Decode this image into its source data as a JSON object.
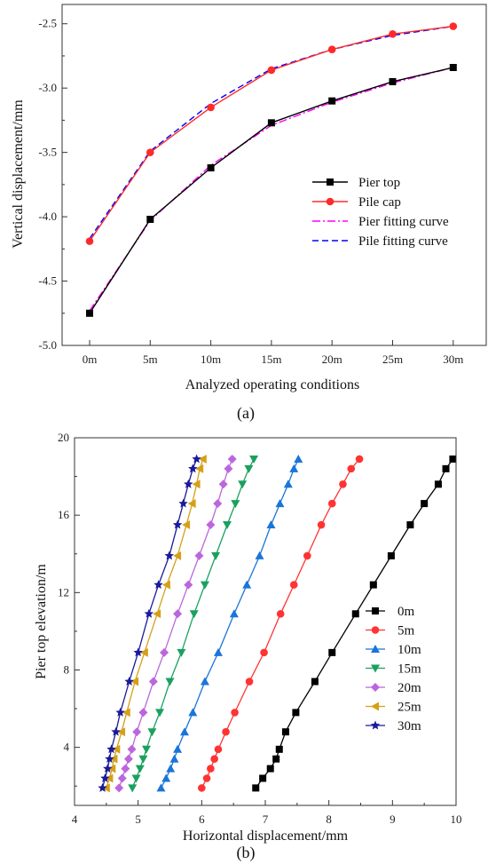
{
  "chart_data": [
    {
      "type": "line",
      "panel_label": "(a)",
      "xlabel": "Analyzed operating conditions",
      "ylabel": "Vertical displacement/mm",
      "categories": [
        "0m",
        "5m",
        "10m",
        "15m",
        "20m",
        "25m",
        "30m"
      ],
      "yticks": [
        "-5.0",
        "-4.5",
        "-4.0",
        "-3.5",
        "-3.0",
        "-2.5"
      ],
      "ylim": [
        -5.0,
        -2.35
      ],
      "legend_position": "right-middle",
      "series": [
        {
          "name": "Pier top",
          "color": "#000000",
          "style": "solid",
          "marker": "square",
          "values": [
            -4.75,
            -4.02,
            -3.62,
            -3.27,
            -3.1,
            -2.95,
            -2.84
          ]
        },
        {
          "name": "Pile cap",
          "color": "#ff2a2a",
          "style": "solid",
          "marker": "circle",
          "values": [
            -4.19,
            -3.5,
            -3.15,
            -2.86,
            -2.7,
            -2.58,
            -2.52
          ]
        },
        {
          "name": "Pier fitting curve",
          "color": "#ff00ff",
          "style": "dashdot",
          "marker": "none",
          "values": [
            -4.73,
            -4.03,
            -3.6,
            -3.29,
            -3.11,
            -2.96,
            -2.84
          ]
        },
        {
          "name": "Pile fitting curve",
          "color": "#0000ff",
          "style": "dashed",
          "marker": "none",
          "values": [
            -4.17,
            -3.49,
            -3.12,
            -2.85,
            -2.7,
            -2.59,
            -2.52
          ]
        }
      ]
    },
    {
      "type": "scatter",
      "panel_label": "(b)",
      "xlabel": "Horizontal displacement/mm",
      "ylabel": "Pier top elevation/m",
      "xticks": [
        "4",
        "5",
        "6",
        "7",
        "8",
        "9",
        "10"
      ],
      "yticks": [
        "4",
        "8",
        "12",
        "16",
        "20"
      ],
      "xlim": [
        4,
        10
      ],
      "ylim": [
        1,
        20
      ],
      "legend_position": "bottom-right",
      "elevations": [
        1.9,
        2.4,
        2.9,
        3.4,
        3.9,
        4.8,
        5.8,
        7.4,
        8.9,
        10.9,
        12.4,
        13.9,
        15.5,
        16.6,
        17.6,
        18.4,
        18.9
      ],
      "series": [
        {
          "name": "0m",
          "color": "#000000",
          "marker": "square",
          "values": [
            6.85,
            6.96,
            7.08,
            7.17,
            7.22,
            7.32,
            7.48,
            7.78,
            8.05,
            8.42,
            8.7,
            8.98,
            9.28,
            9.5,
            9.72,
            9.84,
            9.95
          ]
        },
        {
          "name": "5m",
          "color": "#ff3333",
          "marker": "circle",
          "values": [
            6.0,
            6.08,
            6.14,
            6.2,
            6.26,
            6.38,
            6.52,
            6.75,
            6.98,
            7.24,
            7.45,
            7.66,
            7.88,
            8.05,
            8.22,
            8.35,
            8.48
          ]
        },
        {
          "name": "10m",
          "color": "#1a75d9",
          "marker": "triangle-up",
          "values": [
            5.36,
            5.44,
            5.51,
            5.57,
            5.62,
            5.73,
            5.86,
            6.05,
            6.26,
            6.51,
            6.71,
            6.91,
            7.09,
            7.23,
            7.36,
            7.45,
            7.52
          ]
        },
        {
          "name": "15m",
          "color": "#1aa15f",
          "marker": "triangle-down",
          "values": [
            4.91,
            4.97,
            5.03,
            5.08,
            5.13,
            5.22,
            5.34,
            5.5,
            5.68,
            5.88,
            6.05,
            6.22,
            6.4,
            6.53,
            6.64,
            6.74,
            6.82
          ]
        },
        {
          "name": "20m",
          "color": "#bb66dd",
          "marker": "diamond",
          "values": [
            4.7,
            4.75,
            4.8,
            4.85,
            4.9,
            4.98,
            5.08,
            5.24,
            5.41,
            5.62,
            5.79,
            5.96,
            6.14,
            6.25,
            6.34,
            6.42,
            6.48
          ]
        },
        {
          "name": "25m",
          "color": "#d4a017",
          "marker": "triangle-left",
          "values": [
            4.5,
            4.55,
            4.59,
            4.62,
            4.66,
            4.74,
            4.82,
            4.95,
            5.1,
            5.3,
            5.45,
            5.62,
            5.76,
            5.85,
            5.92,
            5.97,
            6.02
          ]
        },
        {
          "name": "30m",
          "color": "#1a1a9a",
          "marker": "star",
          "values": [
            4.44,
            4.48,
            4.52,
            4.55,
            4.58,
            4.65,
            4.72,
            4.86,
            5.0,
            5.17,
            5.32,
            5.49,
            5.62,
            5.71,
            5.79,
            5.86,
            5.92
          ]
        }
      ]
    }
  ]
}
